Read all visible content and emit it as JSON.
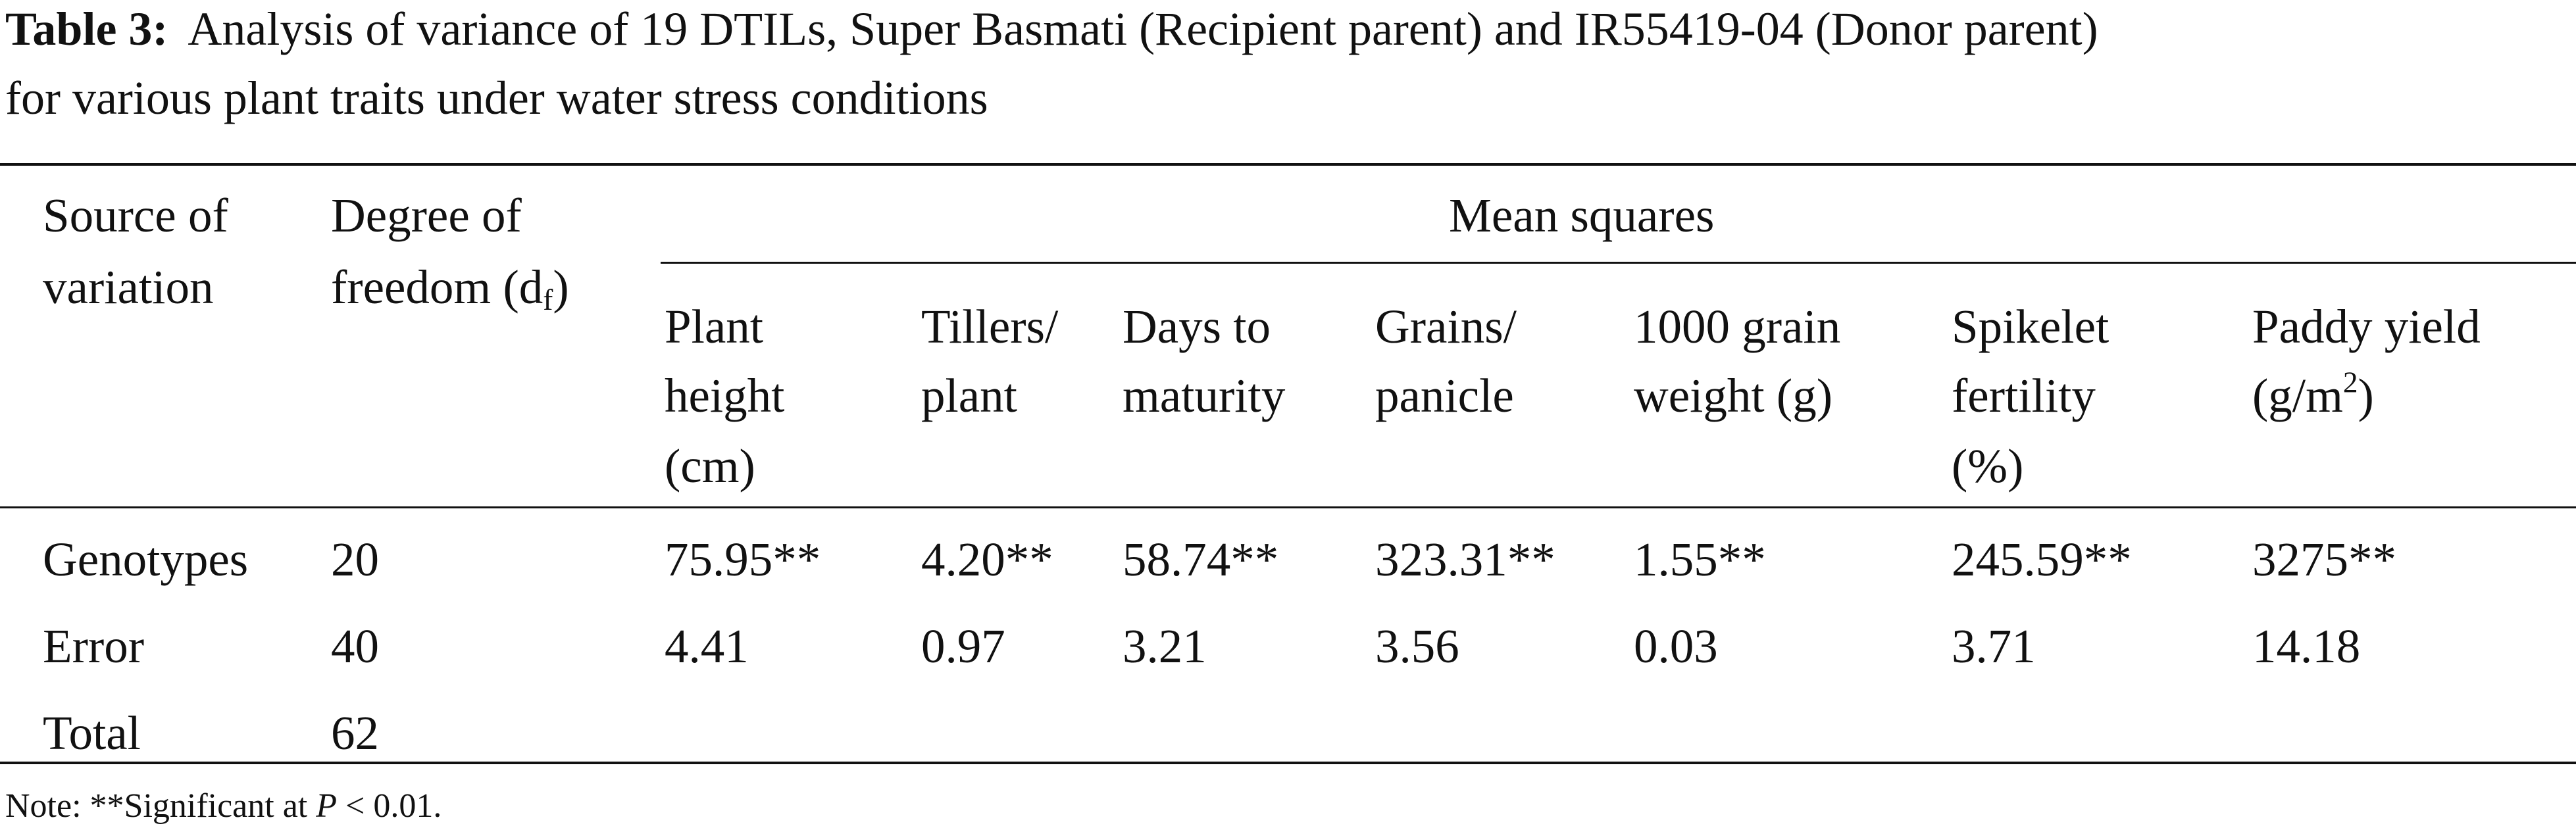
{
  "caption": {
    "label": "Table 3:",
    "line1": "Analysis of variance of 19 DTILs, Super Basmati (Recipient parent) and IR55419-04 (Donor parent)",
    "line2": "for various plant traits under water stress conditions"
  },
  "table": {
    "header": {
      "source": [
        "Source of",
        "variation"
      ],
      "df": {
        "line1": "Degree of",
        "line2_prefix": "freedom (d",
        "line2_sub": "f",
        "line2_suffix": ")"
      },
      "group": "Mean squares",
      "columns": [
        {
          "lines": [
            "Plant",
            "height",
            "(cm)"
          ]
        },
        {
          "lines": [
            "Tillers/",
            "plant"
          ]
        },
        {
          "lines": [
            "Days to",
            "maturity"
          ]
        },
        {
          "lines": [
            "Grains/",
            "panicle"
          ]
        },
        {
          "lines": [
            "1000 grain",
            "weight (g)"
          ]
        },
        {
          "lines": [
            "Spikelet",
            "fertility",
            "(%)"
          ]
        },
        {
          "lines": [
            "Paddy yield",
            "(g/m",
            "2",
            ")"
          ]
        }
      ]
    },
    "rows": [
      {
        "source": "Genotypes",
        "df": "20",
        "values": [
          "75.95**",
          "4.20**",
          "58.74**",
          "323.31**",
          "1.55**",
          "245.59**",
          "3275**"
        ]
      },
      {
        "source": "Error",
        "df": "40",
        "values": [
          "4.41",
          "0.97",
          "3.21",
          "3.56",
          "0.03",
          "3.71",
          "14.18"
        ]
      },
      {
        "source": "Total",
        "df": "62",
        "values": [
          "",
          "",
          "",
          "",
          "",
          "",
          ""
        ]
      }
    ]
  },
  "note": {
    "prefix": "Note: **Significant at ",
    "var": "P",
    "suffix": " < 0.01."
  }
}
